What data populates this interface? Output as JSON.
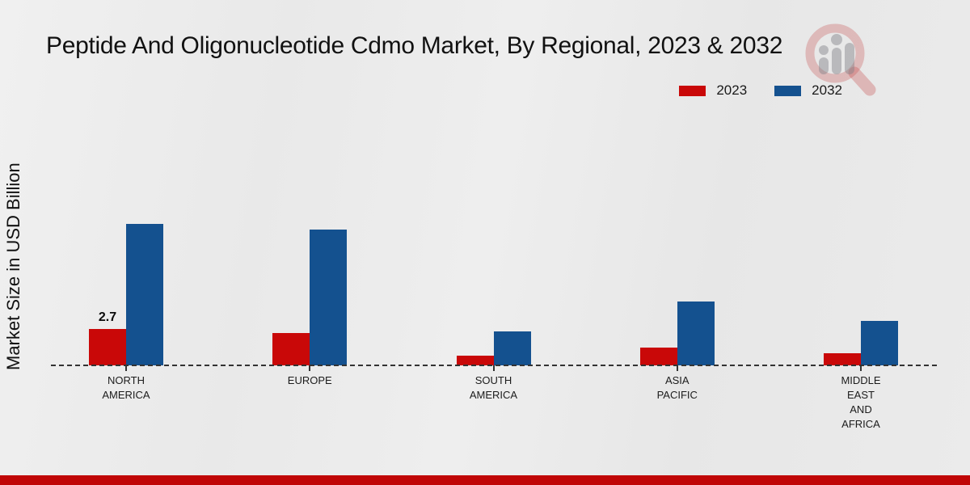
{
  "title": "Peptide And Oligonucleotide Cdmo Market, By Regional, 2023 & 2032",
  "ylabel": "Market Size in USD Billion",
  "legend": [
    {
      "label": "2023",
      "color": "#c90808"
    },
    {
      "label": "2032",
      "color": "#14518f"
    }
  ],
  "colors": {
    "series_2023": "#c90808",
    "series_2032": "#14518f",
    "footer_strip": "#c00606",
    "baseline": "#333333"
  },
  "chart_data": {
    "type": "bar",
    "title": "Peptide And Oligonucleotide Cdmo Market, By Regional, 2023 & 2032",
    "xlabel": "",
    "ylabel": "Market Size in USD Billion",
    "categories": [
      "NORTH AMERICA",
      "EUROPE",
      "SOUTH AMERICA",
      "ASIA PACIFIC",
      "MIDDLE EAST AND AFRICA"
    ],
    "category_lines": [
      [
        "NORTH",
        "AMERICA"
      ],
      [
        "EUROPE"
      ],
      [
        "SOUTH",
        "AMERICA"
      ],
      [
        "ASIA",
        "PACIFIC"
      ],
      [
        "MIDDLE",
        "EAST",
        "AND",
        "AFRICA"
      ]
    ],
    "series": [
      {
        "name": "2023",
        "color": "#c90808",
        "values": [
          2.7,
          2.4,
          0.7,
          1.3,
          0.9
        ]
      },
      {
        "name": "2032",
        "color": "#14518f",
        "values": [
          10.4,
          10.0,
          2.5,
          4.7,
          3.3
        ]
      }
    ],
    "annotations": [
      {
        "series": "2023",
        "category": "NORTH AMERICA",
        "text": "2.7"
      }
    ],
    "axis": {
      "baseline_style": "dashed",
      "gridlines": false,
      "y_axis_ticks_shown": false
    },
    "legend_position": "top-right"
  }
}
